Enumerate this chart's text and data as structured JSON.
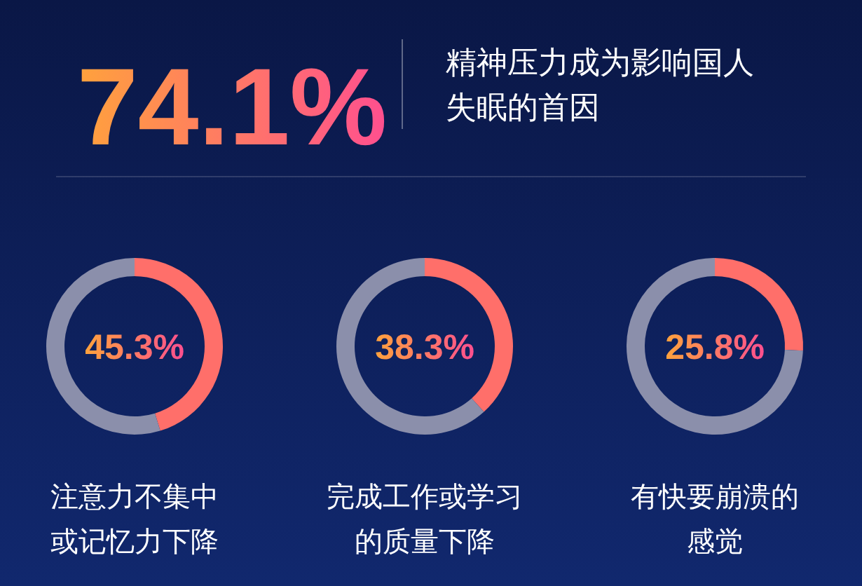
{
  "chart_data": [
    {
      "type": "other",
      "title": "74.1%",
      "subtitle": "精神压力成为影响国人失眠的首因"
    },
    {
      "type": "donut",
      "title": "注意力不集中或记忆力下降",
      "categories": [
        null,
        null
      ],
      "values": [
        45.3,
        54.7
      ],
      "colors": [
        "#ff6f6a",
        "#8b8fab"
      ],
      "annotations": [
        "45.3%"
      ]
    },
    {
      "type": "donut",
      "title": "完成工作或学习的质量下降",
      "categories": [
        null,
        null
      ],
      "values": [
        38.3,
        61.7
      ],
      "colors": [
        "#ff6f6a",
        "#8b8fab"
      ],
      "annotations": [
        "38.3%"
      ]
    },
    {
      "type": "donut",
      "title": "有快要崩溃的感觉",
      "categories": [
        null,
        null
      ],
      "values": [
        25.8,
        74.2
      ],
      "colors": [
        "#ff6f6a",
        "#8b8fab"
      ],
      "annotations": [
        "25.8%"
      ]
    }
  ]
}
